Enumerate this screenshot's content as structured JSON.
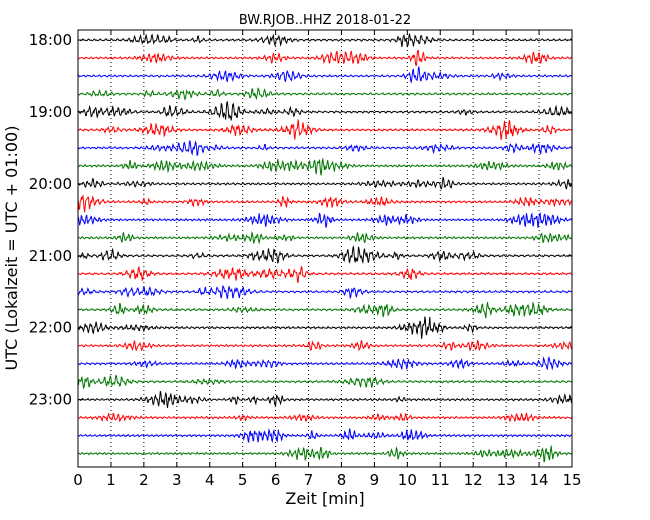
{
  "chart_data": {
    "type": "line",
    "title": "BW.RJOB..HHZ 2018-01-22",
    "xlabel": "Zeit  [min]",
    "ylabel": "UTC (Lokalzeit = UTC + 01:00)",
    "xlim": [
      0,
      15
    ],
    "x_ticks": [
      "0",
      "1",
      "2",
      "3",
      "4",
      "5",
      "6",
      "7",
      "8",
      "9",
      "10",
      "11",
      "12",
      "13",
      "14",
      "15"
    ],
    "y_tick_labels": [
      "18:00",
      "19:00",
      "20:00",
      "21:00",
      "22:00",
      "23:00"
    ],
    "grid": "vertical dotted lines at each minute",
    "trace_colors": [
      "#000000",
      "#ff0000",
      "#0000ff",
      "#007700"
    ],
    "trace_start_times": [
      "18:00",
      "18:15",
      "18:30",
      "18:45",
      "19:00",
      "19:15",
      "19:30",
      "19:45",
      "20:00",
      "20:15",
      "20:30",
      "20:45",
      "21:00",
      "21:15",
      "21:30",
      "21:45",
      "22:00",
      "22:15",
      "22:30",
      "22:45",
      "23:00",
      "23:15",
      "23:30",
      "23:45"
    ]
  }
}
